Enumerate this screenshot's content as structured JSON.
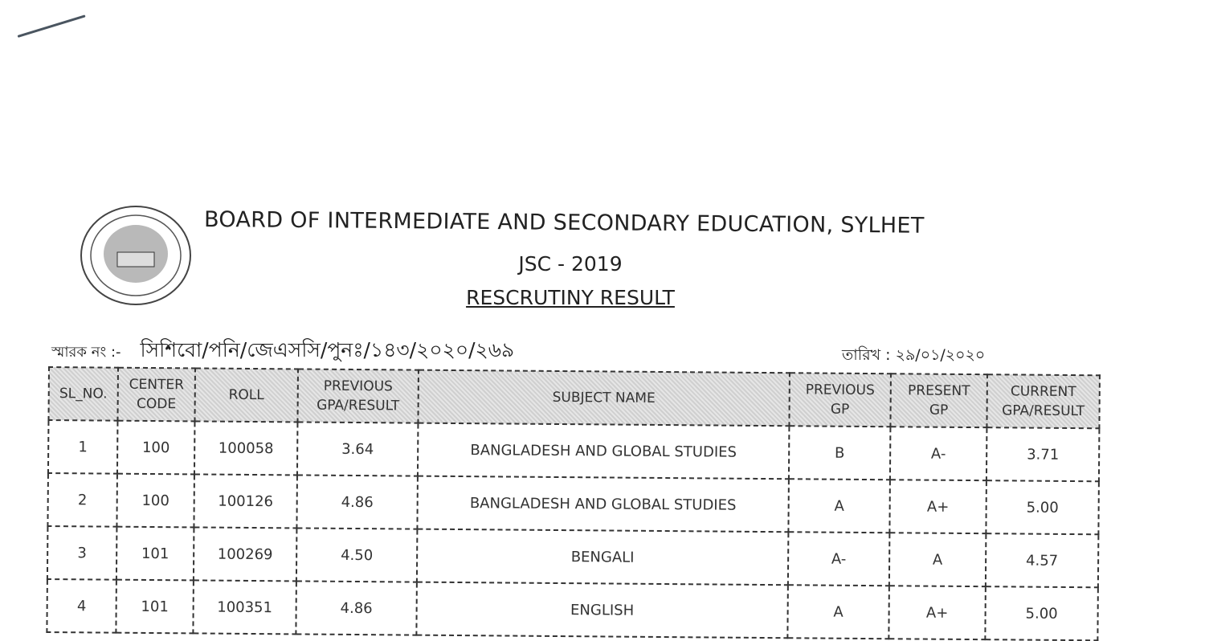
{
  "header": {
    "organization": "BOARD OF INTERMEDIATE AND SECONDARY EDUCATION, SYLHET",
    "exam": "JSC - 2019",
    "document_title": "RESCRUTINY RESULT",
    "memo_label": "স্মারক নং :-",
    "memo_number": "সিশিবো/পনি/জেএসসি/পুনঃ/১৪৩/২০২০/২৬৯",
    "date_label": "তারিখ :",
    "date": "২৯/০১/২০২০"
  },
  "table": {
    "columns": [
      [
        "SL_NO."
      ],
      [
        "CENTER",
        "CODE"
      ],
      [
        "ROLL"
      ],
      [
        "PREVIOUS",
        "GPA/RESULT"
      ],
      [
        "SUBJECT NAME"
      ],
      [
        "PREVIOUS",
        "GP"
      ],
      [
        "PRESENT",
        "GP"
      ],
      [
        "CURRENT",
        "GPA/RESULT"
      ]
    ],
    "rows": [
      [
        "1",
        "100",
        "100058",
        "3.64",
        "BANGLADESH AND GLOBAL STUDIES",
        "B",
        "A-",
        "3.71"
      ],
      [
        "2",
        "100",
        "100126",
        "4.86",
        "BANGLADESH AND GLOBAL STUDIES",
        "A",
        "A+",
        "5.00"
      ],
      [
        "3",
        "101",
        "100269",
        "4.50",
        "BENGALI",
        "A-",
        "A",
        "4.57"
      ],
      [
        "4",
        "101",
        "100351",
        "4.86",
        "ENGLISH",
        "A",
        "A+",
        "5.00"
      ]
    ]
  }
}
